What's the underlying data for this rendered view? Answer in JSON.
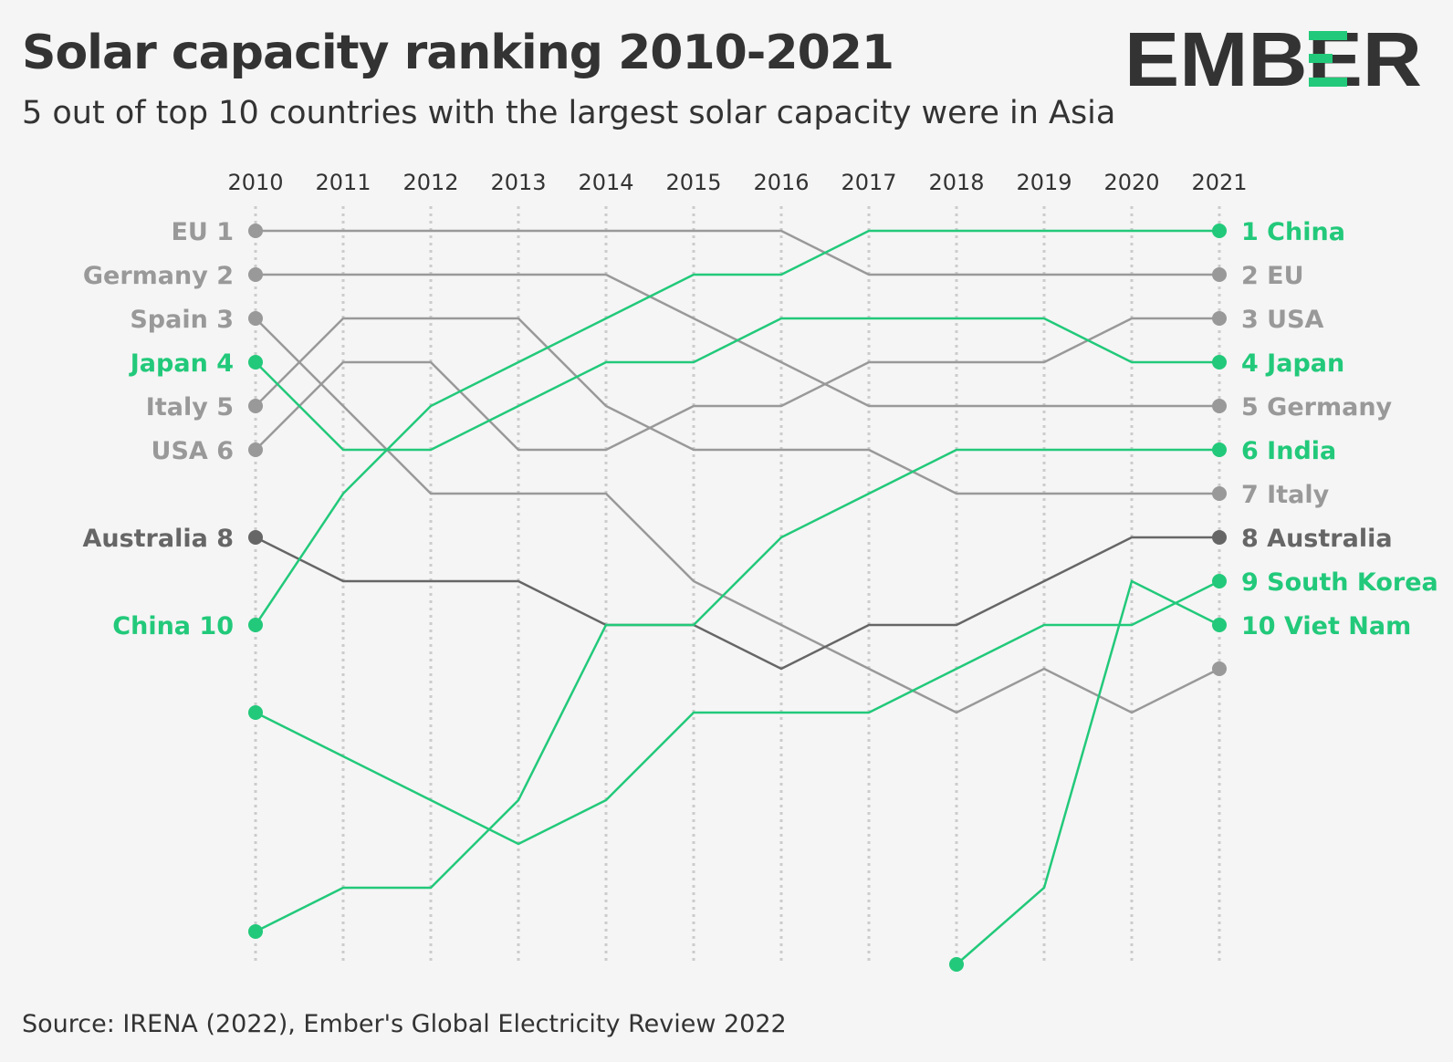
{
  "title": "Solar capacity ranking 2010-2021",
  "subtitle": "5 out of top 10 countries with the largest solar capacity were in Asia",
  "source": "Source: IRENA (2022), Ember's Global Electricity Review 2022",
  "logo": {
    "text": "EMBER",
    "icon": "ember-logo"
  },
  "colors": {
    "asia": "#22c97a",
    "other": "#999999",
    "australia": "#666666",
    "grid": "#cccccc",
    "text": "#333333"
  },
  "chart_data": {
    "type": "line",
    "title": "Solar capacity ranking 2010-2021",
    "x": [
      2010,
      2011,
      2012,
      2013,
      2014,
      2015,
      2016,
      2017,
      2018,
      2019,
      2020,
      2021
    ],
    "xlabel": "",
    "ylabel": "",
    "y_inverted": true,
    "grid": "vertical dotted",
    "series": [
      {
        "name": "EU",
        "group": "other",
        "values": [
          1,
          1,
          1,
          1,
          1,
          1,
          1,
          2,
          2,
          2,
          2,
          2
        ],
        "left_label": "EU 1",
        "right_label": "2 EU"
      },
      {
        "name": "Germany",
        "group": "other",
        "values": [
          2,
          2,
          2,
          2,
          2,
          3,
          4,
          5,
          5,
          5,
          5,
          5
        ],
        "left_label": "Germany 2",
        "right_label": "5 Germany"
      },
      {
        "name": "Spain",
        "group": "other",
        "values": [
          3,
          5,
          7,
          7,
          7,
          9,
          10,
          11,
          12,
          11,
          12,
          11
        ],
        "left_label": "Spain 3",
        "right_label": ""
      },
      {
        "name": "Japan",
        "group": "asia",
        "values": [
          4,
          6,
          6,
          5,
          4,
          4,
          3,
          3,
          3,
          3,
          4,
          4
        ],
        "left_label": "Japan 4",
        "right_label": "4 Japan"
      },
      {
        "name": "Italy",
        "group": "other",
        "values": [
          5,
          3,
          3,
          3,
          5,
          6,
          6,
          6,
          7,
          7,
          7,
          7
        ],
        "left_label": "Italy 5",
        "right_label": "7 Italy"
      },
      {
        "name": "USA",
        "group": "other",
        "values": [
          6,
          4,
          4,
          6,
          6,
          5,
          5,
          4,
          4,
          4,
          3,
          3
        ],
        "left_label": "USA 6",
        "right_label": "3 USA"
      },
      {
        "name": "Australia",
        "group": "australia",
        "values": [
          8,
          9,
          9,
          9,
          10,
          10,
          11,
          10,
          10,
          9,
          8,
          8
        ],
        "left_label": "Australia 8",
        "right_label": "8 Australia"
      },
      {
        "name": "China",
        "group": "asia",
        "values": [
          10,
          7,
          5,
          4,
          3,
          2,
          2,
          1,
          1,
          1,
          1,
          1
        ],
        "left_label": "China 10",
        "right_label": "1 China"
      },
      {
        "name": "South Korea",
        "group": "asia",
        "values": [
          12,
          13,
          14,
          15,
          14,
          12,
          12,
          12,
          11,
          10,
          10,
          9
        ],
        "left_label": "",
        "right_label": "9 South Korea"
      },
      {
        "name": "India",
        "group": "asia",
        "values": [
          17,
          16,
          16,
          14,
          10,
          10,
          8,
          7,
          6,
          6,
          6,
          6
        ],
        "left_label": "",
        "right_label": "6 India"
      },
      {
        "name": "Viet Nam",
        "group": "asia",
        "values": [
          null,
          null,
          null,
          null,
          null,
          null,
          null,
          null,
          17.75,
          16,
          9,
          10
        ],
        "left_label": "",
        "right_label": "10 Viet Nam"
      }
    ]
  }
}
